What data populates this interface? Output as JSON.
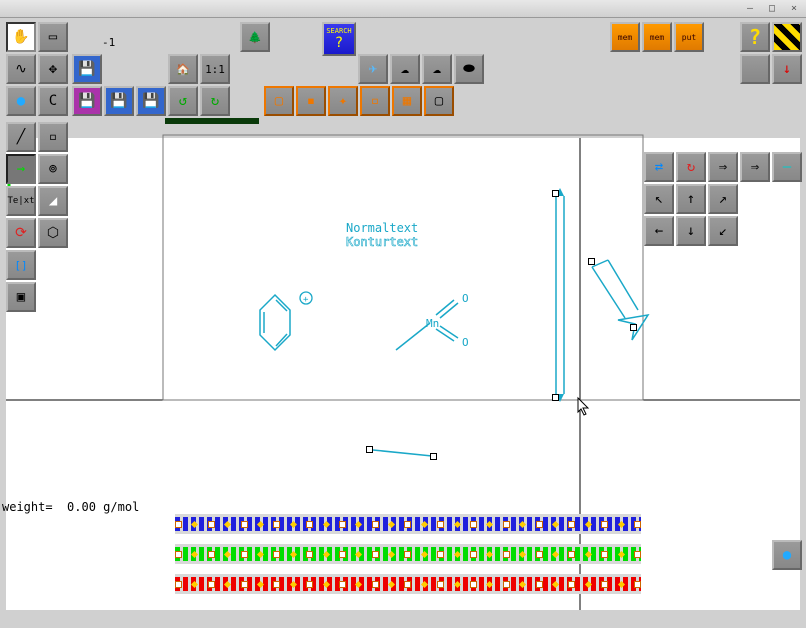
{
  "window": {
    "minimize": "—",
    "maximize": "□",
    "close": "×"
  },
  "coord_label": "-1",
  "weight": {
    "label": "weight=",
    "value": "0.00",
    "unit": "g/mol"
  },
  "canvas": {
    "text_normal": "Normaltext",
    "text_contour": "Konturtext",
    "atom_mn": "Mn",
    "atom_o1": "O",
    "atom_o2": "O",
    "plus_charge": "+"
  },
  "toolbar_icons": {
    "hand": "✋",
    "select_rect": "▭",
    "curve": "∿",
    "move_cross": "✥",
    "circle": "●",
    "clear": "C",
    "line": "╱",
    "erase": "▫",
    "arrow_right": "→",
    "clock": "⊚",
    "text": "Te|xt",
    "peak": "◢",
    "rotate3d": "⟳",
    "benzene": "⬡",
    "bracket": "[]",
    "frame": "▣",
    "diskette_blue": "💾",
    "diskette_purple": "💾",
    "diskette_save": "💾",
    "tree": "🌲",
    "house": "🏠",
    "ratio": "1:1",
    "rotate_ccw": "↺",
    "rotate_cw": "↻",
    "search": "SEARCH",
    "plane": "✈",
    "cloud": "☁",
    "pill": "⬬",
    "sq1": "▢",
    "sq2": "▪",
    "sq3": "✦",
    "sq4": "▫",
    "sq5": "▦",
    "sq6": "▢",
    "mem1": "mem",
    "mem2": "mem",
    "mem3": "put",
    "help": "?",
    "flip": "⇄",
    "rot": "↻",
    "arr_r1": "⇒",
    "arr_r2": "⇒",
    "dash": "—",
    "arr_u": "↑",
    "arr_d": "↓",
    "arr_l": "←",
    "arr_r": "→",
    "arr_ul": "↖",
    "arr_ur": "↗",
    "arr_dl": "↙"
  },
  "colors": {
    "cyan": "#1aa8c8",
    "blue_band": "#2020dd",
    "green_band": "#00dd00",
    "red_band": "#ee0000",
    "track": "#d8d8d8"
  }
}
